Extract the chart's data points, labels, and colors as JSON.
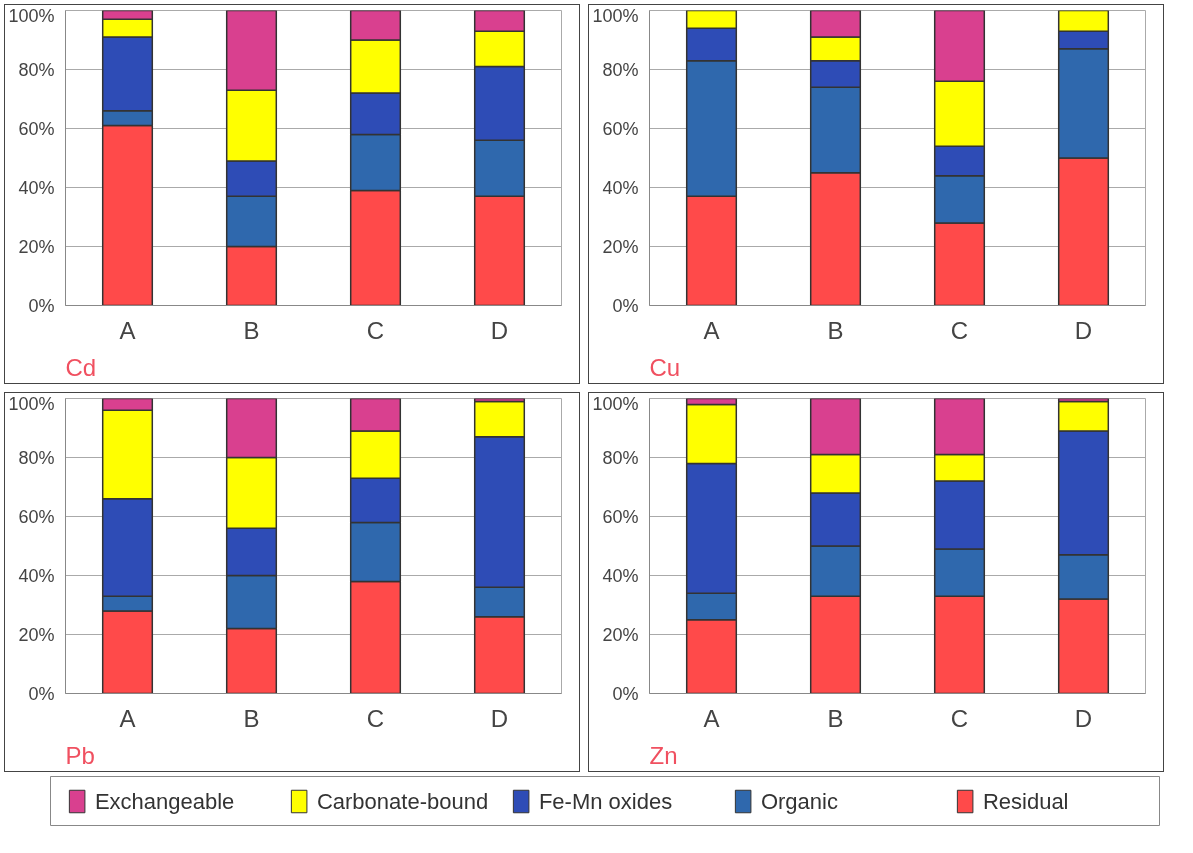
{
  "chart_data": [
    {
      "type": "bar",
      "stacked": true,
      "title": "Cd",
      "categories": [
        "A",
        "B",
        "C",
        "D"
      ],
      "ylim": [
        0,
        100
      ],
      "yticks": [
        {
          "value": 0,
          "label": "0%"
        },
        {
          "value": 20,
          "label": "20%"
        },
        {
          "value": 40,
          "label": "40%"
        },
        {
          "value": 60,
          "label": "60%"
        },
        {
          "value": 80,
          "label": "80%"
        },
        {
          "value": 100,
          "label": "100%"
        }
      ],
      "grid": "y",
      "legend": "bottom",
      "series": [
        {
          "name": "Residual",
          "color": "#ff4a4a",
          "values": [
            61,
            20,
            39,
            37
          ]
        },
        {
          "name": "Organic",
          "color": "#2f68ad",
          "values": [
            5,
            17,
            19,
            19
          ]
        },
        {
          "name": "Fe-Mn oxides",
          "color": "#2e4cb6",
          "values": [
            25,
            12,
            14,
            25
          ]
        },
        {
          "name": "Carbonate-bound",
          "color": "#ffff00",
          "values": [
            6,
            24,
            18,
            12
          ]
        },
        {
          "name": "Exchangeable",
          "color": "#d9408f",
          "values": [
            3,
            27,
            10,
            7
          ]
        }
      ]
    },
    {
      "type": "bar",
      "stacked": true,
      "title": "Cu",
      "categories": [
        "A",
        "B",
        "C",
        "D"
      ],
      "ylim": [
        0,
        100
      ],
      "yticks": [
        {
          "value": 0,
          "label": "0%"
        },
        {
          "value": 20,
          "label": "20%"
        },
        {
          "value": 40,
          "label": "40%"
        },
        {
          "value": 60,
          "label": "60%"
        },
        {
          "value": 80,
          "label": "80%"
        },
        {
          "value": 100,
          "label": "100%"
        }
      ],
      "grid": "y",
      "series": [
        {
          "color": "#ff4a4a",
          "values": [
            37,
            45,
            28,
            50
          ]
        },
        {
          "color": "#2f68ad",
          "values": [
            46,
            29,
            16,
            37
          ]
        },
        {
          "color": "#2e4cb6",
          "values": [
            11,
            9,
            10,
            6
          ]
        },
        {
          "color": "#ffff00",
          "values": [
            6,
            8,
            22,
            7
          ]
        },
        {
          "color": "#d9408f",
          "values": [
            null,
            9,
            24,
            null
          ]
        }
      ]
    },
    {
      "type": "bar",
      "stacked": true,
      "title": "Pb",
      "categories": [
        "A",
        "B",
        "C",
        "D"
      ],
      "ylim": [
        0,
        100
      ],
      "yticks": [
        {
          "value": 0,
          "label": "0%"
        },
        {
          "value": 20,
          "label": "20%"
        },
        {
          "value": 40,
          "label": "40%"
        },
        {
          "value": 60,
          "label": "60%"
        },
        {
          "value": 80,
          "label": "80%"
        },
        {
          "value": 100,
          "label": "100%"
        }
      ],
      "grid": "y",
      "series": [
        {
          "color": "#ff4a4a",
          "values": [
            28,
            22,
            38,
            26
          ]
        },
        {
          "color": "#2f68ad",
          "values": [
            5,
            18,
            20,
            10
          ]
        },
        {
          "color": "#2e4cb6",
          "values": [
            33,
            16,
            15,
            51
          ]
        },
        {
          "color": "#ffff00",
          "values": [
            30,
            24,
            16,
            12
          ]
        },
        {
          "color": "#d9408f",
          "values": [
            4,
            20,
            11,
            1
          ]
        }
      ]
    },
    {
      "type": "bar",
      "stacked": true,
      "title": "Zn",
      "categories": [
        "A",
        "B",
        "C",
        "D"
      ],
      "ylim": [
        0,
        100
      ],
      "yticks": [
        {
          "value": 0,
          "label": "0%"
        },
        {
          "value": 20,
          "label": "20%"
        },
        {
          "value": 40,
          "label": "40%"
        },
        {
          "value": 60,
          "label": "60%"
        },
        {
          "value": 80,
          "label": "80%"
        },
        {
          "value": 100,
          "label": "100%"
        }
      ],
      "grid": "y",
      "series": [
        {
          "color": "#ff4a4a",
          "values": [
            25,
            33,
            33,
            32
          ]
        },
        {
          "color": "#2f68ad",
          "values": [
            9,
            17,
            16,
            15
          ]
        },
        {
          "color": "#2e4cb6",
          "values": [
            44,
            18,
            23,
            42
          ]
        },
        {
          "color": "#ffff00",
          "values": [
            20,
            13,
            9,
            10
          ]
        },
        {
          "color": "#d9408f",
          "values": [
            2,
            19,
            19,
            1
          ]
        }
      ]
    }
  ]
}
